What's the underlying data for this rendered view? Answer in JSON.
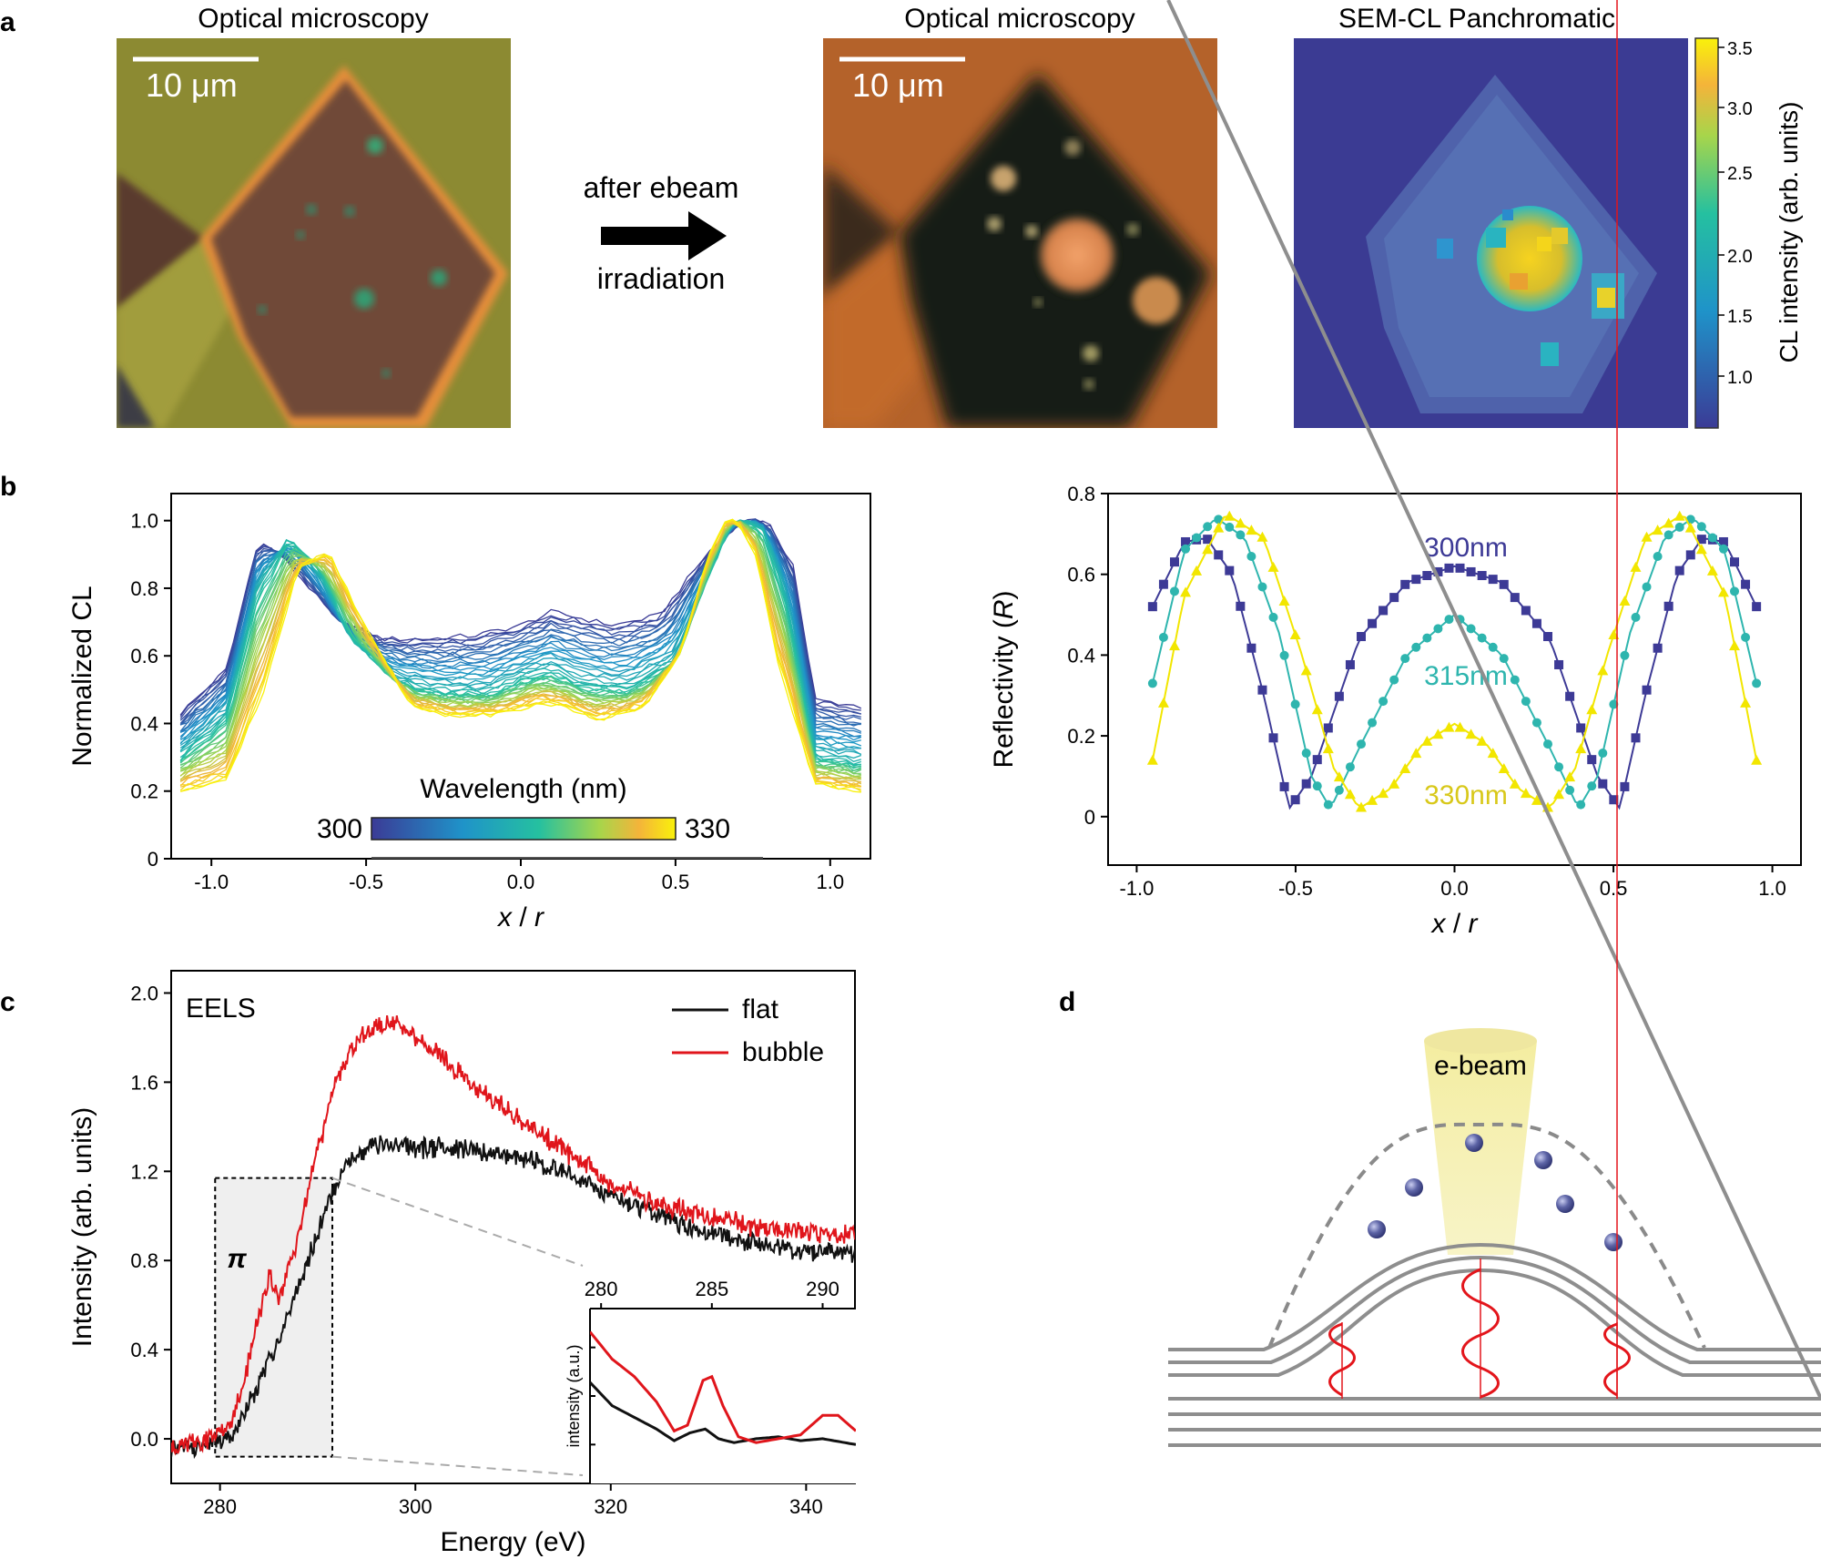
{
  "panels": {
    "a": {
      "letter": "a",
      "img1_title": "Optical microscopy",
      "img2_title": "Optical microscopy",
      "img3_title": "SEM-CL Panchromatic",
      "scale_label": "10 μm",
      "arrow_top": "after ebeam",
      "arrow_bottom": "irradiation",
      "colorbar_label": "CL intensity (arb. units)",
      "colorbar_ticks": [
        "1.0",
        "1.5",
        "2.0",
        "2.5",
        "3.0",
        "3.5"
      ]
    },
    "b": {
      "letter": "b"
    },
    "c": {
      "letter": "c"
    },
    "d": {
      "letter": "d",
      "beam_label": "e-beam"
    }
  },
  "chart_data": [
    {
      "id": "cl_profiles",
      "type": "line",
      "xlabel": "x / r",
      "ylabel": "Normalized CL",
      "xlim": [
        -1.13,
        1.13
      ],
      "ylim": [
        0,
        1.08
      ],
      "xticks": [
        -1.0,
        -0.5,
        0.0,
        0.5,
        1.0
      ],
      "yticks": [
        0,
        0.2,
        0.4,
        0.6,
        0.8,
        1.0
      ],
      "xtick_labels": [
        "-1.0",
        "-0.5",
        "0.0",
        "0.5",
        "1.0"
      ],
      "ytick_labels": [
        "0",
        "0.2",
        "0.4",
        "0.6",
        "0.8",
        "1.0"
      ],
      "colorbar": {
        "title": "Wavelength (nm)",
        "min_label": "300",
        "max_label": "330"
      },
      "series": [
        {
          "name": "300 nm",
          "x": [
            -1.1,
            -0.95,
            -0.85,
            -0.78,
            -0.7,
            -0.6,
            -0.45,
            -0.3,
            -0.15,
            0,
            0.1,
            0.2,
            0.3,
            0.45,
            0.6,
            0.7,
            0.75,
            0.8,
            0.88,
            0.95,
            1.1
          ],
          "y": [
            0.43,
            0.56,
            0.94,
            0.9,
            0.82,
            0.71,
            0.65,
            0.65,
            0.66,
            0.69,
            0.73,
            0.71,
            0.69,
            0.72,
            0.9,
            0.99,
            1.0,
            0.99,
            0.87,
            0.47,
            0.45
          ]
        },
        {
          "name": "315 nm",
          "x": [
            -1.1,
            -0.95,
            -0.85,
            -0.75,
            -0.65,
            -0.55,
            -0.4,
            -0.25,
            -0.1,
            0,
            0.1,
            0.2,
            0.35,
            0.5,
            0.6,
            0.68,
            0.72,
            0.78,
            0.85,
            0.95,
            1.1
          ],
          "y": [
            0.3,
            0.42,
            0.8,
            0.95,
            0.85,
            0.65,
            0.52,
            0.49,
            0.49,
            0.53,
            0.55,
            0.51,
            0.5,
            0.58,
            0.82,
            0.99,
            1.0,
            0.98,
            0.8,
            0.3,
            0.28
          ]
        },
        {
          "name": "330 nm",
          "x": [
            -1.1,
            -0.95,
            -0.83,
            -0.72,
            -0.62,
            -0.5,
            -0.35,
            -0.2,
            -0.05,
            0.05,
            0.15,
            0.25,
            0.4,
            0.52,
            0.6,
            0.66,
            0.7,
            0.76,
            0.82,
            0.95,
            1.1
          ],
          "y": [
            0.2,
            0.23,
            0.5,
            0.86,
            0.91,
            0.68,
            0.45,
            0.42,
            0.43,
            0.46,
            0.45,
            0.41,
            0.45,
            0.62,
            0.88,
            1.0,
            1.0,
            0.9,
            0.62,
            0.22,
            0.2
          ]
        }
      ]
    },
    {
      "id": "reflectivity",
      "type": "line",
      "xlabel": "x / r",
      "ylabel": "Reflectivity (R)",
      "xlim": [
        -1.09,
        1.09
      ],
      "ylim": [
        -0.12,
        0.8
      ],
      "xticks": [
        -1.0,
        -0.5,
        0.0,
        0.5,
        1.0
      ],
      "yticks": [
        0,
        0.2,
        0.4,
        0.6,
        0.8
      ],
      "xtick_labels": [
        "-1.0",
        "-0.5",
        "0.0",
        "0.5",
        "1.0"
      ],
      "ytick_labels": [
        "0",
        "0.2",
        "0.4",
        "0.6",
        "0.8"
      ],
      "series": [
        {
          "name": "300nm",
          "color": "#3d3a96",
          "marker": "square",
          "x": [
            -0.95,
            -0.85,
            -0.78,
            -0.7,
            -0.6,
            -0.52,
            -0.45,
            -0.3,
            -0.15,
            0,
            0.15,
            0.3,
            0.45,
            0.52,
            0.6,
            0.7,
            0.78,
            0.85,
            0.95
          ],
          "y": [
            0.52,
            0.68,
            0.69,
            0.6,
            0.3,
            0.02,
            0.1,
            0.44,
            0.58,
            0.62,
            0.58,
            0.44,
            0.1,
            0.02,
            0.3,
            0.6,
            0.69,
            0.68,
            0.52
          ]
        },
        {
          "name": "315nm",
          "color": "#2eb5ae",
          "marker": "circle",
          "x": [
            -0.95,
            -0.85,
            -0.75,
            -0.66,
            -0.55,
            -0.45,
            -0.39,
            -0.3,
            -0.15,
            0,
            0.15,
            0.3,
            0.39,
            0.45,
            0.55,
            0.66,
            0.75,
            0.85,
            0.95
          ],
          "y": [
            0.33,
            0.66,
            0.74,
            0.69,
            0.45,
            0.1,
            0.02,
            0.17,
            0.4,
            0.5,
            0.4,
            0.17,
            0.02,
            0.1,
            0.45,
            0.69,
            0.74,
            0.66,
            0.33
          ]
        },
        {
          "name": "330nm",
          "color": "#f2e600",
          "marker": "triangle",
          "x": [
            -0.95,
            -0.85,
            -0.72,
            -0.6,
            -0.48,
            -0.38,
            -0.3,
            -0.2,
            -0.1,
            0,
            0.1,
            0.2,
            0.3,
            0.38,
            0.48,
            0.6,
            0.72,
            0.85,
            0.95
          ],
          "y": [
            0.14,
            0.55,
            0.75,
            0.69,
            0.4,
            0.12,
            0.02,
            0.07,
            0.18,
            0.23,
            0.18,
            0.07,
            0.02,
            0.12,
            0.4,
            0.69,
            0.75,
            0.55,
            0.14
          ]
        }
      ],
      "annotations": [
        "300nm",
        "315nm",
        "330nm"
      ]
    },
    {
      "id": "eels",
      "type": "line",
      "title": "EELS",
      "xlabel": "Energy (eV)",
      "ylabel": "Intensity (arb. units)",
      "xlim": [
        275,
        345
      ],
      "ylim": [
        -0.2,
        2.1
      ],
      "xticks": [
        280,
        300,
        320,
        340
      ],
      "yticks": [
        0.0,
        0.4,
        0.8,
        1.2,
        1.6,
        2.0
      ],
      "xtick_labels": [
        "280",
        "300",
        "320",
        "340"
      ],
      "ytick_labels": [
        "0.0",
        "0.4",
        "0.8",
        "1.2",
        "1.6",
        "2.0"
      ],
      "pi_label": "π",
      "series": [
        {
          "name": "flat",
          "color": "#111111",
          "x": [
            275,
            278,
            281,
            283,
            285,
            287,
            289,
            291,
            293,
            296,
            300,
            305,
            310,
            315,
            320,
            325,
            330,
            335,
            340,
            345
          ],
          "y": [
            -0.05,
            -0.03,
            0.0,
            0.15,
            0.35,
            0.55,
            0.8,
            1.05,
            1.25,
            1.32,
            1.31,
            1.3,
            1.27,
            1.2,
            1.1,
            1.0,
            0.93,
            0.88,
            0.84,
            0.83
          ]
        },
        {
          "name": "bubble",
          "color": "#e0151b",
          "x": [
            275,
            278,
            281,
            282.5,
            284,
            285,
            286,
            288,
            290,
            292,
            294,
            296,
            298,
            300,
            303,
            306,
            310,
            315,
            320,
            325,
            330,
            335,
            340,
            345
          ],
          "y": [
            -0.02,
            -0.02,
            0.05,
            0.25,
            0.55,
            0.75,
            0.62,
            0.9,
            1.3,
            1.62,
            1.78,
            1.86,
            1.87,
            1.8,
            1.7,
            1.58,
            1.45,
            1.3,
            1.15,
            1.05,
            1.0,
            0.95,
            0.93,
            0.92
          ]
        }
      ],
      "inset": {
        "xlim": [
          279.5,
          291.5
        ],
        "xticks": [
          280,
          285,
          290
        ],
        "xtick_labels": [
          "280",
          "285",
          "290"
        ],
        "ylabel": "intensity (a.u.)",
        "series": [
          {
            "name": "flat",
            "color": "#111111",
            "x": [
              279.5,
              280.5,
              281.5,
              282.5,
              283.3,
              284,
              284.7,
              285.3,
              286,
              287,
              288,
              289,
              290,
              291.5
            ],
            "y": [
              0.62,
              0.5,
              0.44,
              0.38,
              0.32,
              0.36,
              0.38,
              0.33,
              0.31,
              0.33,
              0.34,
              0.32,
              0.33,
              0.3
            ]
          },
          {
            "name": "bubble",
            "color": "#e0151b",
            "x": [
              279.5,
              280.5,
              281.5,
              282.5,
              283.3,
              283.9,
              284.6,
              285,
              285.5,
              286.2,
              287,
              288,
              289,
              290,
              290.7,
              291.5
            ],
            "y": [
              0.88,
              0.74,
              0.65,
              0.52,
              0.37,
              0.4,
              0.63,
              0.65,
              0.5,
              0.34,
              0.31,
              0.33,
              0.35,
              0.45,
              0.45,
              0.37
            ]
          }
        ]
      }
    }
  ]
}
